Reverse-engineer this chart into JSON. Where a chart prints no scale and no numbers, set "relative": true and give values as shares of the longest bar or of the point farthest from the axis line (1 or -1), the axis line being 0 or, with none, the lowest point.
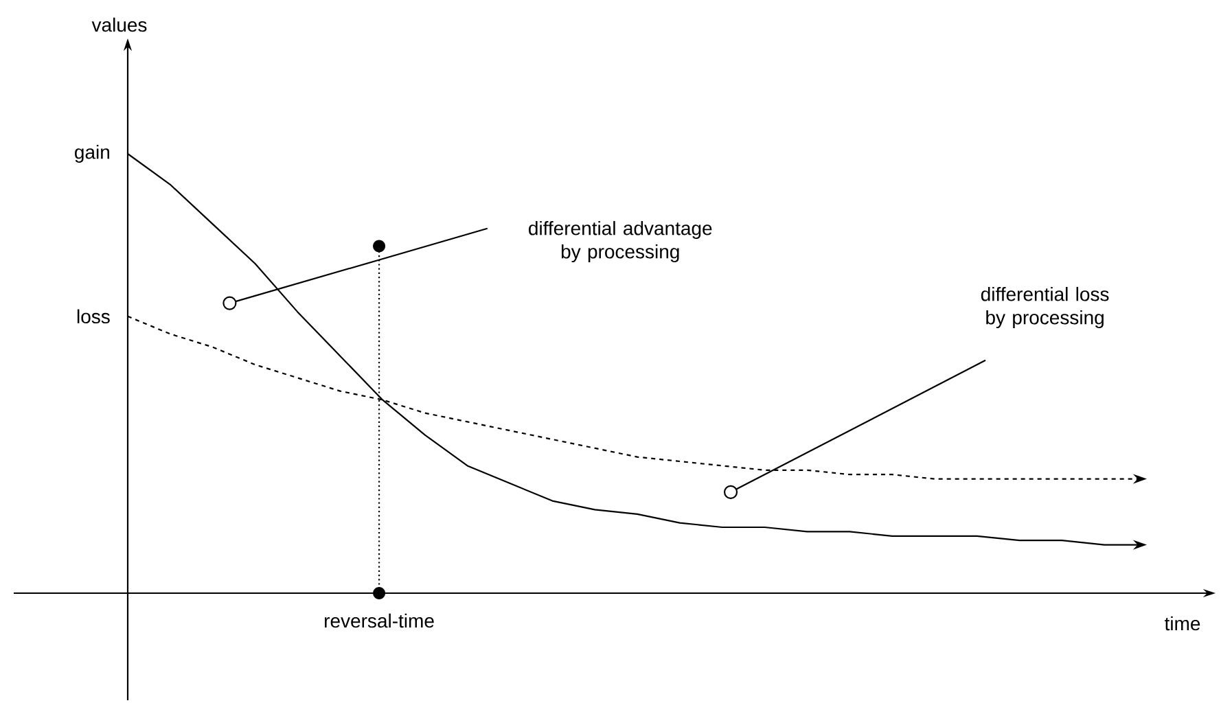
{
  "chart_data": {
    "type": "line",
    "relative": true,
    "xlabel": "time",
    "legend": false,
    "marker": "none",
    "categories": [
      null,
      null,
      null,
      null,
      null,
      null,
      null,
      null,
      null,
      null,
      null,
      null,
      null,
      null,
      null,
      null,
      null,
      null,
      null,
      null,
      null,
      null,
      null,
      null,
      null
    ],
    "series": [
      {
        "name": "gain",
        "color": "#000000",
        "line_style": "solid",
        "values": [
          1.0,
          0.93,
          0.84,
          0.75,
          0.64,
          0.54,
          0.44,
          0.36,
          0.29,
          0.25,
          0.21,
          0.19,
          0.18,
          0.16,
          0.15,
          0.15,
          0.14,
          0.14,
          0.13,
          0.13,
          0.13,
          0.12,
          0.12,
          0.11,
          0.11
        ]
      },
      {
        "name": "loss",
        "color": "#000000",
        "line_style": "dashed",
        "values": [
          0.63,
          0.59,
          0.56,
          0.52,
          0.49,
          0.46,
          0.44,
          0.41,
          0.39,
          0.37,
          0.35,
          0.33,
          0.31,
          0.3,
          0.29,
          0.28,
          0.28,
          0.27,
          0.27,
          0.26,
          0.26,
          0.26,
          0.26,
          0.26,
          0.26
        ]
      }
    ],
    "annotations": [
      "differential advantage by processing",
      "differential loss by processing",
      "reversal-time",
      "values"
    ]
  }
}
